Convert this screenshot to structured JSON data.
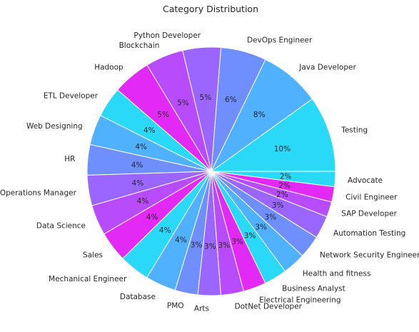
{
  "chart_data": {
    "type": "pie",
    "title": "Category Distribution",
    "value_format": "percent_integer",
    "slices": [
      {
        "label": "Testing",
        "value": 10,
        "color": "#2AD8F8"
      },
      {
        "label": "Java Developer",
        "value": 8,
        "color": "#4FB1FF"
      },
      {
        "label": "DevOps Engineer",
        "value": 6,
        "color": "#6F8FFF"
      },
      {
        "label": "Python Developer",
        "value": 5,
        "color": "#9A66FF"
      },
      {
        "label": "Blockchain",
        "value": 5,
        "color": "#B84BFB"
      },
      {
        "label": "Hadoop",
        "value": 5,
        "color": "#E229F6"
      },
      {
        "label": "ETL Developer",
        "value": 4,
        "color": "#2AD8F8"
      },
      {
        "label": "Web Designing",
        "value": 4,
        "color": "#4FB1FF"
      },
      {
        "label": "HR",
        "value": 4,
        "color": "#6F8FFF"
      },
      {
        "label": "Operations Manager",
        "value": 4,
        "color": "#9A66FF"
      },
      {
        "label": "Data Science",
        "value": 4,
        "color": "#B84BFB"
      },
      {
        "label": "Sales",
        "value": 4,
        "color": "#E229F6"
      },
      {
        "label": "Mechanical Engineer",
        "value": 4,
        "color": "#2AD8F8"
      },
      {
        "label": "Database",
        "value": 4,
        "color": "#4FB1FF"
      },
      {
        "label": "PMO",
        "value": 3,
        "color": "#6F8FFF"
      },
      {
        "label": "Arts",
        "value": 3,
        "color": "#9A66FF"
      },
      {
        "label": "DotNet Developer",
        "value": 3,
        "color": "#B84BFB"
      },
      {
        "label": "Electrical Engineering",
        "value": 3,
        "color": "#E229F6"
      },
      {
        "label": "Business Analyst",
        "value": 3,
        "color": "#2AD8F8"
      },
      {
        "label": "Health and fitness",
        "value": 3,
        "color": "#4FB1FF"
      },
      {
        "label": "Network Security Engineer",
        "value": 3,
        "color": "#6F8FFF"
      },
      {
        "label": "Automation Testing",
        "value": 3,
        "color": "#9A66FF"
      },
      {
        "label": "SAP Developer",
        "value": 2,
        "color": "#B84BFB"
      },
      {
        "label": "Civil Engineer",
        "value": 2,
        "color": "#E229F6"
      },
      {
        "label": "Advocate",
        "value": 2,
        "color": "#2AD8F8"
      }
    ]
  }
}
